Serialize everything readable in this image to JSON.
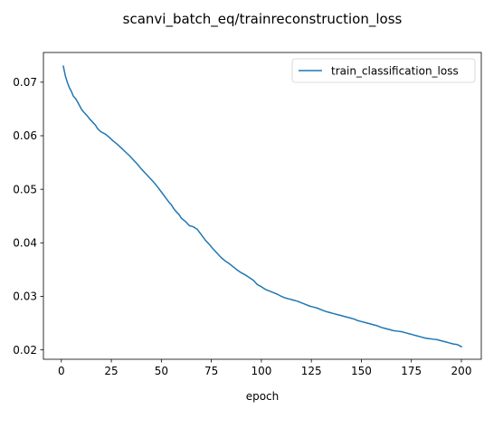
{
  "chart_data": {
    "type": "line",
    "title": "scanvi_batch_eq/trainreconstruction_loss",
    "xlabel": "epoch",
    "ylabel": "",
    "xlim": [
      -8.95,
      209.95
    ],
    "ylim": [
      0.01825,
      0.07555
    ],
    "xticks": [
      0,
      25,
      50,
      75,
      100,
      125,
      150,
      175,
      200
    ],
    "yticks": [
      0.02,
      0.03,
      0.04,
      0.05,
      0.06,
      0.07
    ],
    "xtick_labels": [
      "0",
      "25",
      "50",
      "75",
      "100",
      "125",
      "150",
      "175",
      "200"
    ],
    "ytick_labels": [
      "0.02",
      "0.03",
      "0.04",
      "0.05",
      "0.06",
      "0.07"
    ],
    "grid": false,
    "legend_position": "top-right",
    "series": [
      {
        "name": "train_classification_loss",
        "color": "#1f77b4",
        "x": [
          1,
          2,
          3,
          4,
          5,
          6,
          7,
          8,
          9,
          10,
          11,
          12,
          13,
          14,
          15,
          16,
          17,
          18,
          19,
          20,
          22,
          24,
          26,
          28,
          30,
          32,
          34,
          36,
          38,
          40,
          42,
          44,
          46,
          48,
          50,
          52,
          54,
          55,
          56,
          57,
          58,
          59,
          60,
          62,
          64,
          66,
          68,
          70,
          72,
          74,
          76,
          78,
          80,
          82,
          84,
          86,
          88,
          90,
          92,
          94,
          96,
          98,
          100,
          102,
          104,
          106,
          108,
          110,
          112,
          114,
          116,
          118,
          120,
          122,
          124,
          126,
          128,
          130,
          132,
          134,
          136,
          138,
          140,
          142,
          144,
          146,
          148,
          150,
          152,
          154,
          156,
          158,
          160,
          162,
          164,
          166,
          168,
          170,
          172,
          174,
          176,
          178,
          180,
          182,
          184,
          186,
          188,
          190,
          192,
          194,
          196,
          198,
          199,
          200
        ],
        "y": [
          0.073,
          0.0712,
          0.07,
          0.069,
          0.0683,
          0.0674,
          0.067,
          0.0664,
          0.0657,
          0.065,
          0.0645,
          0.0641,
          0.0637,
          0.0632,
          0.0628,
          0.0624,
          0.062,
          0.0614,
          0.061,
          0.0607,
          0.0603,
          0.0597,
          0.059,
          0.0584,
          0.0577,
          0.057,
          0.0563,
          0.0555,
          0.0547,
          0.0538,
          0.053,
          0.0522,
          0.0514,
          0.0505,
          0.0495,
          0.0485,
          0.0475,
          0.0471,
          0.0465,
          0.046,
          0.0456,
          0.0452,
          0.0446,
          0.044,
          0.0432,
          0.043,
          0.0425,
          0.0415,
          0.0405,
          0.0397,
          0.0388,
          0.038,
          0.0372,
          0.0366,
          0.0361,
          0.0355,
          0.0349,
          0.0344,
          0.034,
          0.0335,
          0.033,
          0.0322,
          0.0318,
          0.0313,
          0.031,
          0.0307,
          0.0304,
          0.03,
          0.0297,
          0.0295,
          0.0293,
          0.0291,
          0.0288,
          0.0285,
          0.0282,
          0.028,
          0.0278,
          0.0275,
          0.0272,
          0.027,
          0.0268,
          0.0266,
          0.0264,
          0.0262,
          0.026,
          0.0258,
          0.0255,
          0.0253,
          0.0251,
          0.0249,
          0.0247,
          0.0245,
          0.0242,
          0.024,
          0.0238,
          0.0236,
          0.0235,
          0.0234,
          0.0232,
          0.023,
          0.0228,
          0.0226,
          0.0224,
          0.0222,
          0.0221,
          0.022,
          0.0219,
          0.0217,
          0.0215,
          0.0213,
          0.0211,
          0.021,
          0.0208,
          0.0206
        ]
      }
    ]
  }
}
